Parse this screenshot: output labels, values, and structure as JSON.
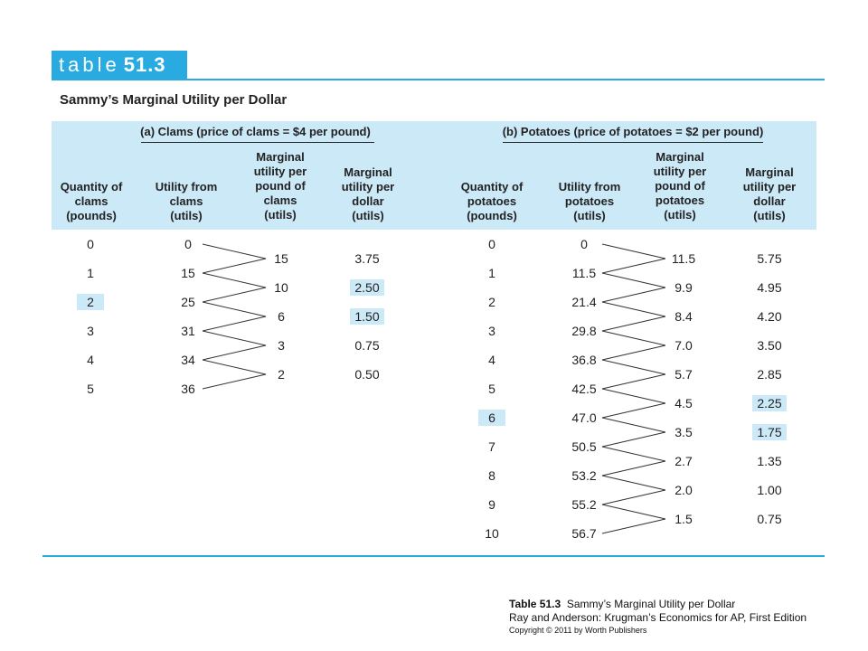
{
  "tag": {
    "word": "table",
    "number": "51.3"
  },
  "title": "Sammy’s Marginal Utility per Dollar",
  "groups": {
    "clams": "(a) Clams (price of clams = $4 per pound)",
    "potatoes": "(b) Potatoes (price of potatoes = $2 per pound)"
  },
  "columns": {
    "clams_qty": "Quantity of clams (pounds)",
    "clams_util": "Utility from clams (utils)",
    "clams_mu": "Marginal utility per pound of clams (utils)",
    "clams_mud": "Marginal utility per dollar (utils)",
    "pot_qty": "Quantity of potatoes (pounds)",
    "pot_util": "Utility from potatoes (utils)",
    "pot_mu": "Marginal utility per pound of potatoes (utils)",
    "pot_mud": "Marginal utility per dollar (utils)"
  },
  "clams": {
    "quantity": [
      "0",
      "1",
      "2",
      "3",
      "4",
      "5"
    ],
    "utility": [
      "0",
      "15",
      "25",
      "31",
      "34",
      "36"
    ],
    "marginal_utility": [
      "15",
      "10",
      "6",
      "3",
      "2"
    ],
    "mu_per_dollar": [
      "3.75",
      "2.50",
      "1.50",
      "0.75",
      "0.50"
    ],
    "highlight_quantity": [
      2
    ],
    "highlight_mud": [
      1,
      2
    ]
  },
  "potatoes": {
    "quantity": [
      "0",
      "1",
      "2",
      "3",
      "4",
      "5",
      "6",
      "7",
      "8",
      "9",
      "10"
    ],
    "utility": [
      "0",
      "11.5",
      "21.4",
      "29.8",
      "36.8",
      "42.5",
      "47.0",
      "50.5",
      "53.2",
      "55.2",
      "56.7"
    ],
    "marginal_utility": [
      "11.5",
      "9.9",
      "8.4",
      "7.0",
      "5.7",
      "4.5",
      "3.5",
      "2.7",
      "2.0",
      "1.5"
    ],
    "mu_per_dollar": [
      "5.75",
      "4.95",
      "4.20",
      "3.50",
      "2.85",
      "2.25",
      "1.75",
      "1.35",
      "1.00",
      "0.75"
    ],
    "highlight_quantity": [
      6
    ],
    "highlight_mud": [
      5,
      6
    ]
  },
  "caption": {
    "label": "Table 51.3",
    "text": "Sammy’s Marginal Utility per Dollar",
    "line2": "Ray and Anderson: Krugman’s Economics for AP, First Edition",
    "line3": "Copyright © 2011 by Worth Publishers"
  },
  "colors": {
    "accent": "#29aae1",
    "header_band": "#cce9f8"
  }
}
